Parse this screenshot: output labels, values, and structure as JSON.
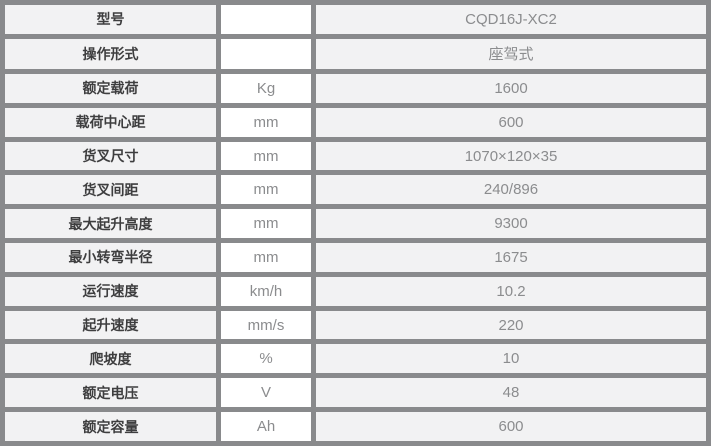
{
  "table": {
    "name": "product-specification-table",
    "rows": [
      {
        "label": "型号",
        "unit": "",
        "value": "CQD16J-XC2"
      },
      {
        "label": "操作形式",
        "unit": "",
        "value": "座驾式"
      },
      {
        "label": "额定载荷",
        "unit": "Kg",
        "value": "1600"
      },
      {
        "label": "载荷中心距",
        "unit": "mm",
        "value": "600"
      },
      {
        "label": "货叉尺寸",
        "unit": "mm",
        "value": "1070×120×35"
      },
      {
        "label": "货叉间距",
        "unit": "mm",
        "value": "240/896"
      },
      {
        "label": "最大起升高度",
        "unit": "mm",
        "value": "9300"
      },
      {
        "label": "最小转弯半径",
        "unit": "mm",
        "value": "1675"
      },
      {
        "label": "运行速度",
        "unit": "km/h",
        "value": "10.2"
      },
      {
        "label": "起升速度",
        "unit": "mm/s",
        "value": "220"
      },
      {
        "label": "爬坡度",
        "unit": "%",
        "value": "10"
      },
      {
        "label": "额定电压",
        "unit": "V",
        "value": "48"
      },
      {
        "label": "额定容量",
        "unit": "Ah",
        "value": "600"
      }
    ],
    "colors": {
      "border": "#898a8c",
      "cell_background": "#f2f2f3",
      "unit_background": "#ffffff",
      "label_text": "#3e3e3f",
      "value_text": "#8b8c8e"
    }
  }
}
